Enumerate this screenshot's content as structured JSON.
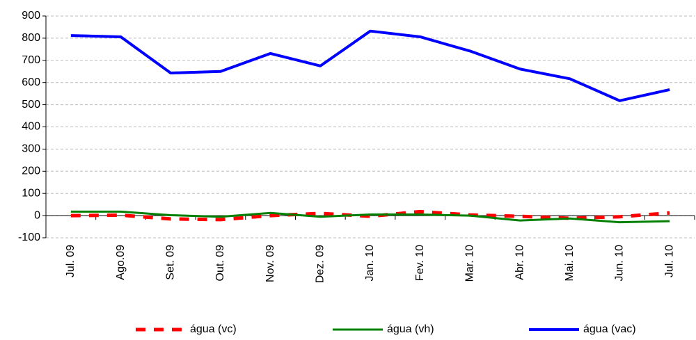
{
  "chart_data": {
    "type": "line",
    "categories": [
      "Jul. 09",
      "Ago.09",
      "Set. 09",
      "Out. 09",
      "Nov. 09",
      "Dez. 09",
      "Jan. 10",
      "Fev. 10",
      "Mar. 10",
      "Abr. 10",
      "Mai. 10",
      "Jun. 10",
      "Jul. 10"
    ],
    "series": [
      {
        "name": "água (vc)",
        "color": "#ff0000",
        "dash": true,
        "values": [
          0,
          2,
          -15,
          -18,
          0,
          10,
          -3,
          18,
          3,
          -3,
          -12,
          -5,
          12
        ]
      },
      {
        "name": "água (vh)",
        "color": "#008000",
        "values": [
          18,
          18,
          2,
          -5,
          12,
          -5,
          5,
          5,
          0,
          -22,
          -13,
          -30,
          -25
        ]
      },
      {
        "name": "água (vac)",
        "color": "#0000ff",
        "values": [
          812,
          806,
          643,
          650,
          731,
          675,
          832,
          806,
          742,
          661,
          617,
          518,
          568
        ]
      }
    ],
    "ylim": [
      -100,
      900
    ],
    "yticks": [
      -100,
      0,
      100,
      200,
      300,
      400,
      500,
      600,
      700,
      800,
      900
    ],
    "grid": true,
    "legend": "bottom"
  }
}
